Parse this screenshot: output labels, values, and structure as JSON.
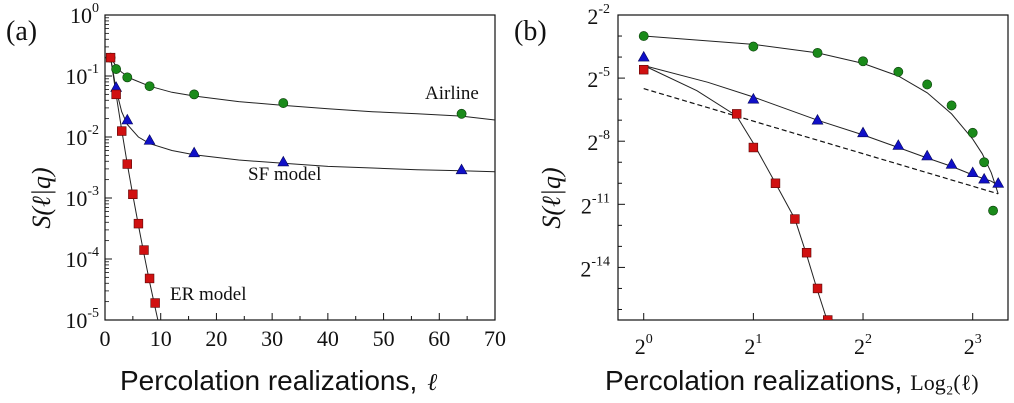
{
  "chart_data": [
    {
      "panel": "(a)",
      "type": "scatter",
      "xlabel": "Percolation realizations,",
      "xlabel_symbol": "ℓ",
      "ylabel": "S(ℓ|q)",
      "xlim": [
        0,
        70
      ],
      "ylim": [
        1e-05,
        1
      ],
      "yscale": "log",
      "xticks": [
        0,
        10,
        20,
        30,
        40,
        50,
        60,
        70
      ],
      "yticks": [
        {
          "value": 1e-05,
          "base": "10",
          "exp": "-5"
        },
        {
          "value": 0.0001,
          "base": "10",
          "exp": "-4"
        },
        {
          "value": 0.001,
          "base": "10",
          "exp": "-3"
        },
        {
          "value": 0.01,
          "base": "10",
          "exp": "-2"
        },
        {
          "value": 0.1,
          "base": "10",
          "exp": "-1"
        },
        {
          "value": 1,
          "base": "10",
          "exp": "0"
        }
      ],
      "annotations": [
        {
          "text": "Airline",
          "series": "Airline"
        },
        {
          "text": "SF model",
          "series": "SF model"
        },
        {
          "text": "ER model",
          "series": "ER model"
        }
      ],
      "series": [
        {
          "name": "Airline",
          "marker": "circle",
          "color": "#1a8a1a",
          "x": [
            1,
            2,
            4,
            8,
            16,
            32,
            64
          ],
          "y": [
            0.2,
            0.13,
            0.095,
            0.068,
            0.05,
            0.036,
            0.024
          ],
          "fit_x": [
            1,
            2,
            3,
            5,
            8,
            12,
            16,
            24,
            32,
            40,
            48,
            56,
            64,
            70
          ],
          "fit_y": [
            0.2,
            0.145,
            0.115,
            0.088,
            0.068,
            0.054,
            0.047,
            0.038,
            0.033,
            0.029,
            0.026,
            0.024,
            0.022,
            0.019
          ]
        },
        {
          "name": "SF model",
          "marker": "triangle",
          "color": "#1010c8",
          "x": [
            2,
            4,
            8,
            16,
            32,
            64
          ],
          "y": [
            0.065,
            0.019,
            0.0088,
            0.0055,
            0.0039,
            0.0029
          ],
          "fit_x": [
            1,
            2,
            3,
            4,
            6,
            8,
            12,
            16,
            24,
            32,
            40,
            48,
            56,
            64,
            70
          ],
          "fit_y": [
            0.2,
            0.06,
            0.026,
            0.016,
            0.01,
            0.0078,
            0.006,
            0.0051,
            0.0042,
            0.0037,
            0.0033,
            0.0031,
            0.0029,
            0.0028,
            0.0027
          ]
        },
        {
          "name": "ER model",
          "marker": "square",
          "color": "#d01010",
          "x": [
            1,
            2,
            3,
            4,
            5,
            6,
            7,
            8,
            9
          ],
          "y": [
            0.2,
            0.05,
            0.0125,
            0.0036,
            0.00115,
            0.00038,
            0.00014,
            4.8e-05,
            1.9e-05
          ],
          "fit_x": [
            1,
            2,
            3,
            4,
            5,
            6,
            7,
            8,
            9,
            10
          ],
          "fit_y": [
            0.2,
            0.05,
            0.013,
            0.0036,
            0.0011,
            0.00036,
            0.00012,
            4.2e-05,
            1.6e-05,
            6.2e-06
          ]
        }
      ]
    },
    {
      "panel": "(b)",
      "type": "scatter",
      "xlabel": "Percolation realizations,",
      "xlabel_symbol": "Log2(ℓ)",
      "ylabel": "S(ℓ|q)",
      "xscale": "log2",
      "yscale": "log2",
      "xlim": [
        0.85,
        10
      ],
      "ylim": [
        -16.5,
        -2
      ],
      "xticks": [
        {
          "value": 1,
          "base": "2",
          "exp": "0"
        },
        {
          "value": 2,
          "base": "2",
          "exp": "1"
        },
        {
          "value": 4,
          "base": "2",
          "exp": "2"
        },
        {
          "value": 8,
          "base": "2",
          "exp": "3"
        }
      ],
      "yticks": [
        {
          "value": -2,
          "base": "2",
          "exp": "-2"
        },
        {
          "value": -5,
          "base": "2",
          "exp": "-5"
        },
        {
          "value": -8,
          "base": "2",
          "exp": "-8"
        },
        {
          "value": -11,
          "base": "2",
          "exp": "-11"
        },
        {
          "value": -14,
          "base": "2",
          "exp": "-14"
        }
      ],
      "series": [
        {
          "name": "Airline",
          "marker": "circle",
          "color": "#1a8a1a",
          "x": [
            1,
            2,
            3,
            4,
            5,
            6,
            7,
            8,
            8.6,
            9.1
          ],
          "y_log2": [
            -3.0,
            -3.5,
            -3.8,
            -4.2,
            -4.7,
            -5.3,
            -6.3,
            -7.6,
            -9.0,
            -11.3
          ],
          "fit_x": [
            1,
            2,
            3,
            4,
            5,
            6,
            7,
            8,
            8.5,
            9,
            9.4
          ],
          "fit_y_log2": [
            -3.0,
            -3.4,
            -3.8,
            -4.3,
            -4.9,
            -5.7,
            -6.7,
            -7.9,
            -8.6,
            -9.5,
            -10.5
          ]
        },
        {
          "name": "SF model",
          "marker": "triangle",
          "color": "#1010c8",
          "x": [
            1,
            2,
            3,
            4,
            5,
            6,
            7,
            8,
            8.6,
            9.4
          ],
          "y_log2": [
            -4.0,
            -6.0,
            -7.0,
            -7.6,
            -8.2,
            -8.7,
            -9.1,
            -9.5,
            -9.8,
            -10.0
          ],
          "fit_x": [
            1,
            1.5,
            2,
            3,
            4,
            5,
            6,
            7,
            8,
            9,
            9.4
          ],
          "fit_y_log2": [
            -4.4,
            -5.2,
            -5.9,
            -7.0,
            -7.7,
            -8.3,
            -8.8,
            -9.2,
            -9.6,
            -9.9,
            -10.1
          ]
        },
        {
          "name": "ER model",
          "marker": "square",
          "color": "#d01010",
          "x": [
            1,
            1.8,
            2,
            2.3,
            2.6,
            2.8,
            3,
            3.2
          ],
          "y_log2": [
            -4.6,
            -6.7,
            -8.3,
            -10.0,
            -11.7,
            -13.3,
            -15.0,
            -16.5
          ],
          "fit_x": [
            1,
            1.4,
            1.8,
            2,
            2.3,
            2.6,
            2.8,
            3,
            3.2
          ],
          "fit_y_log2": [
            -4.4,
            -5.6,
            -6.8,
            -8.1,
            -10.0,
            -11.7,
            -13.4,
            -15.1,
            -16.6
          ]
        },
        {
          "name": "reference",
          "line": "dashed",
          "color": "#111111",
          "x": [
            1,
            9.4
          ],
          "y_log2": [
            -5.5,
            -10.5
          ]
        }
      ]
    }
  ],
  "panel_labels": {
    "a": "(a)",
    "b": "(b)"
  },
  "axis_text": {
    "xlabel": "Percolation realizations,",
    "xlabel_a_symbol": "ℓ",
    "xlabel_b_symbol": "Log₂(ℓ)",
    "ylabel": "S(ℓ|q)"
  },
  "annotations": {
    "airline": "Airline",
    "sf": "SF model",
    "er": "ER model"
  }
}
